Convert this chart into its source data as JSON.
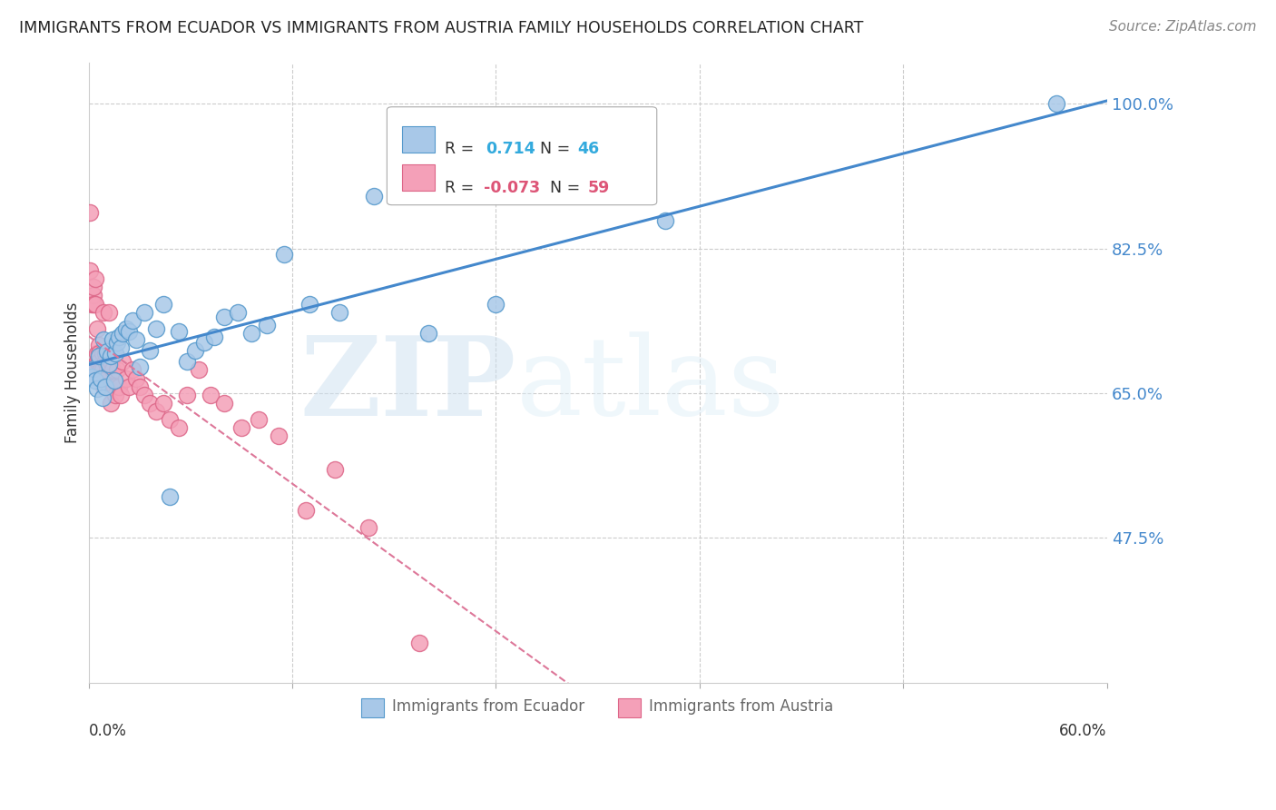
{
  "title": "IMMIGRANTS FROM ECUADOR VS IMMIGRANTS FROM AUSTRIA FAMILY HOUSEHOLDS CORRELATION CHART",
  "source": "Source: ZipAtlas.com",
  "ylabel": "Family Households",
  "ytick_labels": [
    "47.5%",
    "65.0%",
    "82.5%",
    "100.0%"
  ],
  "ytick_values": [
    0.475,
    0.65,
    0.825,
    1.0
  ],
  "xmin": 0.0,
  "xmax": 0.6,
  "ymin": 0.3,
  "ymax": 1.05,
  "ecuador_color": "#a8c8e8",
  "austria_color": "#f4a0b8",
  "ecuador_edge": "#5599cc",
  "austria_edge": "#dd6688",
  "line_ecuador_color": "#4488cc",
  "line_austria_color": "#dd7799",
  "ecuador_x": [
    0.002,
    0.003,
    0.004,
    0.005,
    0.006,
    0.007,
    0.008,
    0.009,
    0.01,
    0.011,
    0.012,
    0.013,
    0.014,
    0.015,
    0.016,
    0.017,
    0.018,
    0.019,
    0.02,
    0.022,
    0.024,
    0.026,
    0.028,
    0.03,
    0.033,
    0.036,
    0.04,
    0.044,
    0.048,
    0.053,
    0.058,
    0.063,
    0.068,
    0.074,
    0.08,
    0.088,
    0.096,
    0.105,
    0.115,
    0.13,
    0.148,
    0.168,
    0.2,
    0.24,
    0.34,
    0.57
  ],
  "ecuador_y": [
    0.67,
    0.68,
    0.665,
    0.655,
    0.695,
    0.668,
    0.645,
    0.715,
    0.658,
    0.7,
    0.685,
    0.695,
    0.715,
    0.665,
    0.698,
    0.712,
    0.718,
    0.705,
    0.722,
    0.728,
    0.725,
    0.738,
    0.715,
    0.682,
    0.748,
    0.702,
    0.728,
    0.758,
    0.525,
    0.725,
    0.688,
    0.702,
    0.712,
    0.718,
    0.742,
    0.748,
    0.722,
    0.732,
    0.818,
    0.758,
    0.748,
    0.888,
    0.722,
    0.758,
    0.858,
    1.0
  ],
  "austria_x": [
    0.001,
    0.001,
    0.002,
    0.002,
    0.003,
    0.003,
    0.003,
    0.004,
    0.004,
    0.005,
    0.005,
    0.005,
    0.006,
    0.006,
    0.006,
    0.007,
    0.007,
    0.008,
    0.008,
    0.009,
    0.009,
    0.01,
    0.01,
    0.011,
    0.011,
    0.012,
    0.012,
    0.013,
    0.013,
    0.014,
    0.015,
    0.015,
    0.016,
    0.017,
    0.018,
    0.019,
    0.02,
    0.022,
    0.024,
    0.026,
    0.028,
    0.03,
    0.033,
    0.036,
    0.04,
    0.044,
    0.048,
    0.053,
    0.058,
    0.065,
    0.072,
    0.08,
    0.09,
    0.1,
    0.112,
    0.128,
    0.145,
    0.165,
    0.195
  ],
  "austria_y": [
    0.868,
    0.798,
    0.758,
    0.682,
    0.768,
    0.778,
    0.758,
    0.788,
    0.758,
    0.728,
    0.698,
    0.688,
    0.708,
    0.698,
    0.688,
    0.678,
    0.678,
    0.698,
    0.678,
    0.658,
    0.748,
    0.688,
    0.698,
    0.678,
    0.668,
    0.658,
    0.748,
    0.638,
    0.688,
    0.678,
    0.658,
    0.698,
    0.648,
    0.678,
    0.658,
    0.648,
    0.688,
    0.668,
    0.658,
    0.678,
    0.668,
    0.658,
    0.648,
    0.638,
    0.628,
    0.638,
    0.618,
    0.608,
    0.648,
    0.678,
    0.648,
    0.638,
    0.608,
    0.618,
    0.598,
    0.508,
    0.558,
    0.488,
    0.348
  ],
  "watermark_zip": "ZIP",
  "watermark_atlas": "atlas",
  "background_color": "#ffffff",
  "grid_color": "#cccccc",
  "legend_r1_text": "R =",
  "legend_r1_val": "0.714",
  "legend_n1_text": "N =",
  "legend_n1_val": "46",
  "legend_r2_text": "R =",
  "legend_r2_val": "-0.073",
  "legend_n2_text": "N =",
  "legend_n2_val": "59"
}
